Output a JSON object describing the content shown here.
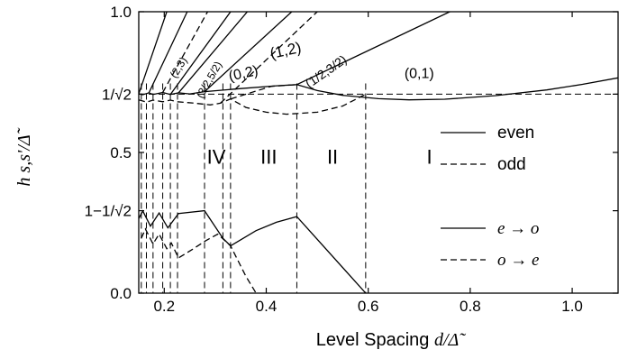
{
  "chart_data": {
    "type": "line",
    "xlabel_text": "Level Spacing ",
    "xlabel_sym": "d/Δ̃",
    "ylabel": "h s,s'/Δ̃",
    "xlim": [
      0.15,
      1.09
    ],
    "ylim": [
      0.0,
      1.0
    ],
    "xticks": [
      {
        "v": 0.2,
        "label": "0.2"
      },
      {
        "v": 0.4,
        "label": "0.4"
      },
      {
        "v": 0.6,
        "label": "0.6"
      },
      {
        "v": 0.8,
        "label": "0.8"
      },
      {
        "v": 1.0,
        "label": "1.0"
      }
    ],
    "yticks": [
      {
        "v": 0.0,
        "label": "0.0"
      },
      {
        "v": 0.2929,
        "label": "1−1/√2"
      },
      {
        "v": 0.5,
        "label": "0.5"
      },
      {
        "v": 0.7071,
        "label": "1/√2"
      },
      {
        "v": 1.0,
        "label": "1.0"
      }
    ],
    "guide_y": 0.7071,
    "legend_top": [
      {
        "style": "solid",
        "label": "even"
      },
      {
        "style": "dashed",
        "label": "odd"
      }
    ],
    "legend_bottom": [
      {
        "style": "solid",
        "label": "e → o"
      },
      {
        "style": "dashed",
        "label": "o → e"
      }
    ],
    "regions": [
      {
        "label": "I",
        "x": 0.72,
        "y": 0.46
      },
      {
        "label": "II",
        "x": 0.53,
        "y": 0.46
      },
      {
        "label": "III",
        "x": 0.405,
        "y": 0.46
      },
      {
        "label": "IV",
        "x": 0.302,
        "y": 0.46
      }
    ],
    "state_labels": [
      {
        "label": "(0,1)",
        "x": 0.7,
        "y": 0.765,
        "rot": 0,
        "size": 16
      },
      {
        "label": "(1/2,3/2)",
        "x": 0.522,
        "y": 0.775,
        "rot": -35,
        "size": 14
      },
      {
        "label": "(1,2)",
        "x": 0.44,
        "y": 0.845,
        "rot": -12,
        "size": 17
      },
      {
        "label": "(0,2)",
        "x": 0.357,
        "y": 0.765,
        "rot": -12,
        "size": 16
      },
      {
        "label": "(3/2,5/2)",
        "x": 0.294,
        "y": 0.752,
        "rot": -60,
        "size": 12
      },
      {
        "label": "(2,3)",
        "x": 0.234,
        "y": 0.795,
        "rot": -58,
        "size": 12
      }
    ],
    "vlines_x": [
      0.155,
      0.165,
      0.178,
      0.197,
      0.212,
      0.226,
      0.279,
      0.315,
      0.33,
      0.46,
      0.595
    ],
    "series": [
      {
        "style": "solid",
        "points": [
          [
            0.15,
            0.708
          ],
          [
            0.158,
            0.705
          ],
          [
            0.17,
            0.712
          ],
          [
            0.178,
            0.706
          ],
          [
            0.197,
            0.713
          ],
          [
            0.212,
            0.706
          ],
          [
            0.228,
            0.712
          ],
          [
            0.25,
            0.708
          ],
          [
            0.279,
            0.716
          ],
          [
            0.35,
            0.727
          ],
          [
            0.42,
            0.737
          ],
          [
            0.46,
            0.741
          ],
          [
            0.5,
            0.72
          ],
          [
            0.55,
            0.703
          ],
          [
            0.62,
            0.691
          ],
          [
            0.68,
            0.687
          ],
          [
            0.75,
            0.689
          ],
          [
            0.85,
            0.702
          ],
          [
            0.95,
            0.722
          ],
          [
            1.02,
            0.742
          ],
          [
            1.09,
            0.765
          ]
        ]
      },
      {
        "style": "dashed",
        "points": [
          [
            0.15,
            0.687
          ],
          [
            0.165,
            0.679
          ],
          [
            0.178,
            0.686
          ],
          [
            0.197,
            0.68
          ],
          [
            0.212,
            0.686
          ],
          [
            0.226,
            0.68
          ],
          [
            0.26,
            0.675
          ],
          [
            0.29,
            0.669
          ],
          [
            0.31,
            0.675
          ],
          [
            0.33,
            0.69
          ],
          [
            0.36,
            0.66
          ],
          [
            0.4,
            0.643
          ],
          [
            0.44,
            0.636
          ],
          [
            0.5,
            0.643
          ],
          [
            0.55,
            0.665
          ],
          [
            0.595,
            0.707
          ]
        ]
      },
      {
        "style": "dashed",
        "points": [
          [
            0.33,
            0.69
          ],
          [
            0.41,
            0.735
          ],
          [
            0.46,
            0.741
          ]
        ]
      },
      {
        "style": "solid",
        "points": [
          [
            0.15,
            0.265
          ],
          [
            0.158,
            0.292
          ],
          [
            0.173,
            0.238
          ],
          [
            0.19,
            0.285
          ],
          [
            0.207,
            0.232
          ],
          [
            0.228,
            0.283
          ],
          [
            0.279,
            0.293
          ],
          [
            0.315,
            0.195
          ],
          [
            0.33,
            0.168
          ],
          [
            0.38,
            0.222
          ],
          [
            0.42,
            0.252
          ],
          [
            0.46,
            0.272
          ],
          [
            0.595,
            0.0
          ]
        ]
      },
      {
        "style": "dashed",
        "points": [
          [
            0.155,
            0.195
          ],
          [
            0.163,
            0.228
          ],
          [
            0.178,
            0.175
          ],
          [
            0.19,
            0.21
          ],
          [
            0.205,
            0.158
          ],
          [
            0.214,
            0.178
          ],
          [
            0.228,
            0.125
          ],
          [
            0.255,
            0.155
          ],
          [
            0.28,
            0.185
          ],
          [
            0.305,
            0.21
          ],
          [
            0.33,
            0.168
          ],
          [
            0.36,
            0.06
          ],
          [
            0.38,
            0.0
          ]
        ]
      },
      {
        "style": "solid",
        "points": [
          [
            0.15,
            0.708
          ],
          [
            0.205,
            1.0
          ]
        ]
      },
      {
        "style": "solid",
        "points": [
          [
            0.17,
            0.712
          ],
          [
            0.245,
            1.0
          ]
        ]
      },
      {
        "style": "dashed",
        "points": [
          [
            0.197,
            0.713
          ],
          [
            0.285,
            1.0
          ]
        ]
      },
      {
        "style": "solid",
        "points": [
          [
            0.212,
            0.706
          ],
          [
            0.33,
            1.0
          ]
        ]
      },
      {
        "style": "solid",
        "points": [
          [
            0.228,
            0.712
          ],
          [
            0.363,
            1.0
          ]
        ]
      },
      {
        "style": "solid",
        "points": [
          [
            0.279,
            0.716
          ],
          [
            0.45,
            1.0
          ]
        ]
      },
      {
        "style": "dashed",
        "points": [
          [
            0.31,
            0.675
          ],
          [
            0.5,
            1.0
          ]
        ]
      },
      {
        "style": "solid",
        "points": [
          [
            0.46,
            0.741
          ],
          [
            0.76,
            1.0
          ]
        ]
      }
    ]
  }
}
